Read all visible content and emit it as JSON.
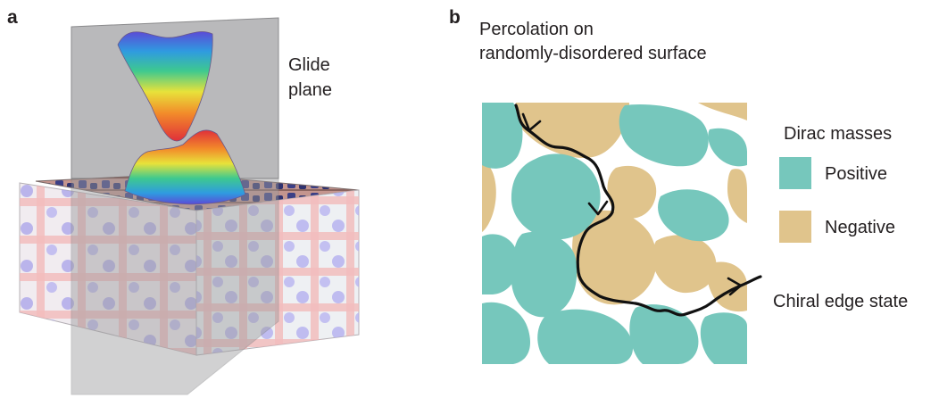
{
  "panel_a": {
    "letter": "a",
    "plane_label_line1": "Glide",
    "plane_label_line2": "plane"
  },
  "panel_b": {
    "letter": "b",
    "title_line1": "Percolation on",
    "title_line2": "randomly-disordered surface",
    "legend_title": "Dirac masses",
    "legend_items": [
      {
        "label": "Positive",
        "color": "#76c7bc"
      },
      {
        "label": "Negative",
        "color": "#e0c48c"
      }
    ],
    "edge_state_label": "Chiral edge state"
  }
}
